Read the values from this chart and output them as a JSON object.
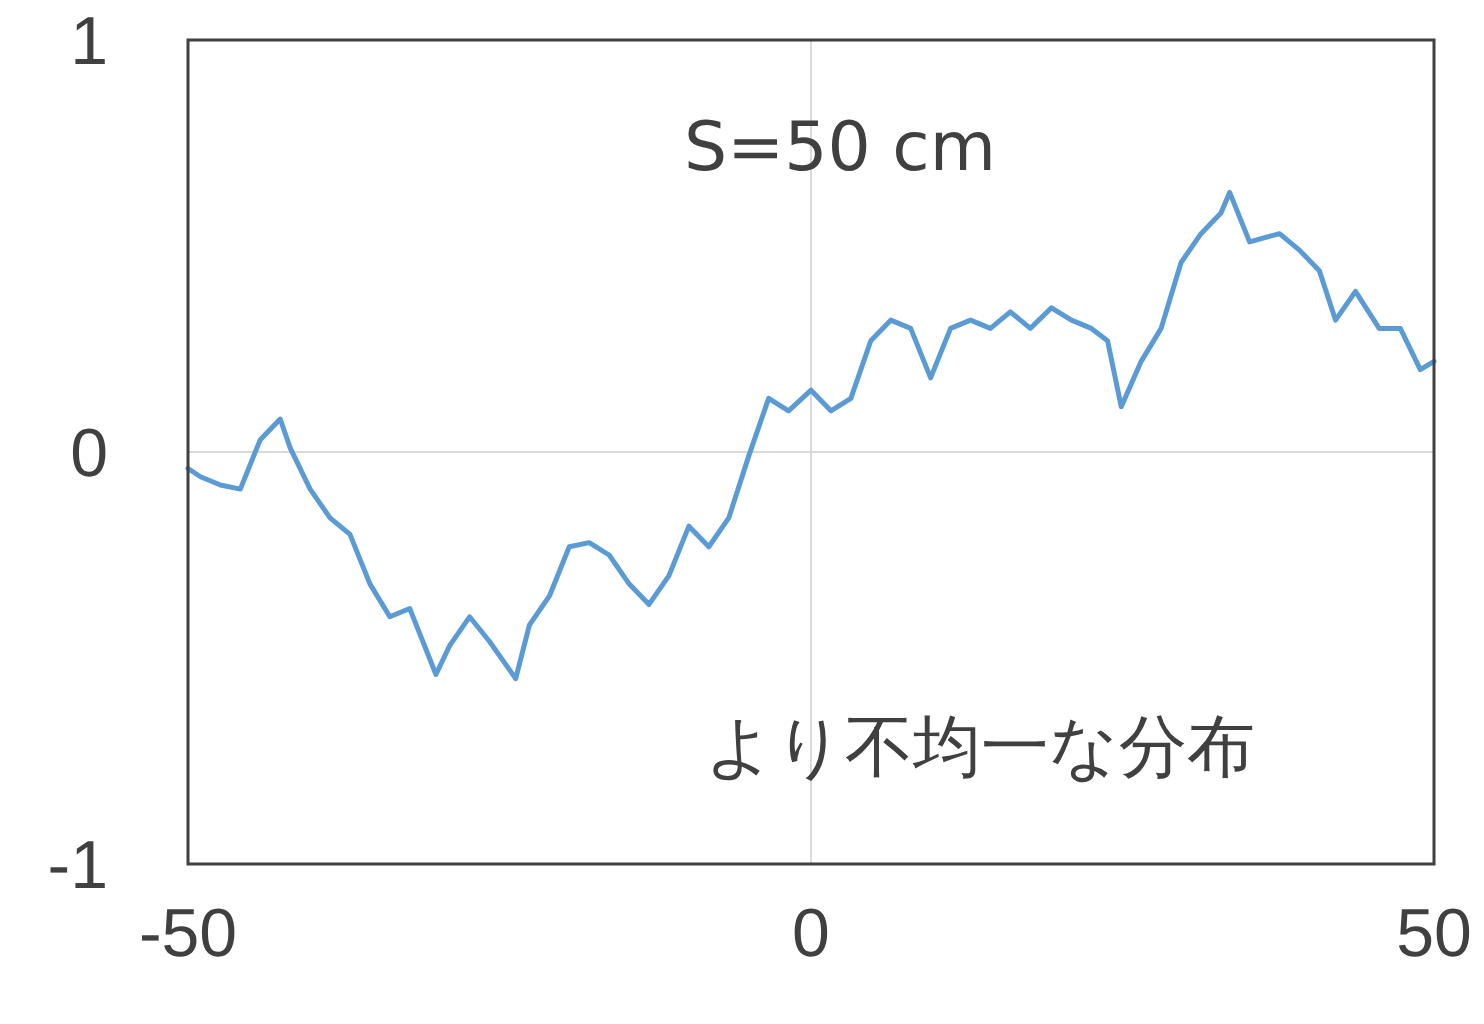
{
  "chart_data": {
    "type": "line",
    "xlim": [
      -50,
      50
    ],
    "ylim": [
      -1,
      1
    ],
    "xticks": [
      -50,
      0,
      50
    ],
    "yticks": [
      -1,
      0,
      1
    ],
    "grid": true,
    "marker": "none",
    "line_style": "solid",
    "annotations": [
      "S=50 cm",
      "より不均一な分布"
    ],
    "series": [
      {
        "color": "#5b9bd5",
        "x": [
          -50,
          -49,
          -47.4,
          -45.8,
          -44.2,
          -42.6,
          -41.8,
          -40.2,
          -38.6,
          -37,
          -35.4,
          -33.8,
          -32.2,
          -30.1,
          -29,
          -27.4,
          -25.8,
          -23.7,
          -22.6,
          -21,
          -19.4,
          -17.8,
          -16.2,
          -14.6,
          -13,
          -11.4,
          -9.8,
          -8.2,
          -6.6,
          -5,
          -3.4,
          -1.8,
          0,
          1.6,
          3.2,
          4.8,
          6.4,
          8,
          9.6,
          11.2,
          12.8,
          14.4,
          16,
          17.6,
          19.3,
          20.9,
          22.5,
          23.8,
          24.9,
          26.5,
          28.1,
          29.7,
          31.3,
          32.9,
          33.6,
          35.2,
          37.6,
          39.2,
          40.8,
          42.1,
          43.7,
          45.6,
          47.3,
          48.9,
          50
        ],
        "values": [
          -0.04,
          -0.06,
          -0.08,
          -0.09,
          0.03,
          0.08,
          0.01,
          -0.09,
          -0.16,
          -0.2,
          -0.32,
          -0.4,
          -0.38,
          -0.54,
          -0.47,
          -0.4,
          -0.46,
          -0.55,
          -0.42,
          -0.35,
          -0.23,
          -0.22,
          -0.25,
          -0.32,
          -0.37,
          -0.3,
          -0.18,
          -0.23,
          -0.16,
          -0.01,
          0.13,
          0.1,
          0.15,
          0.1,
          0.13,
          0.27,
          0.32,
          0.3,
          0.18,
          0.3,
          0.32,
          0.3,
          0.34,
          0.3,
          0.35,
          0.32,
          0.3,
          0.27,
          0.11,
          0.22,
          0.3,
          0.46,
          0.53,
          0.58,
          0.63,
          0.51,
          0.53,
          0.49,
          0.44,
          0.32,
          0.39,
          0.3,
          0.3,
          0.2,
          0.22
        ]
      }
    ]
  }
}
